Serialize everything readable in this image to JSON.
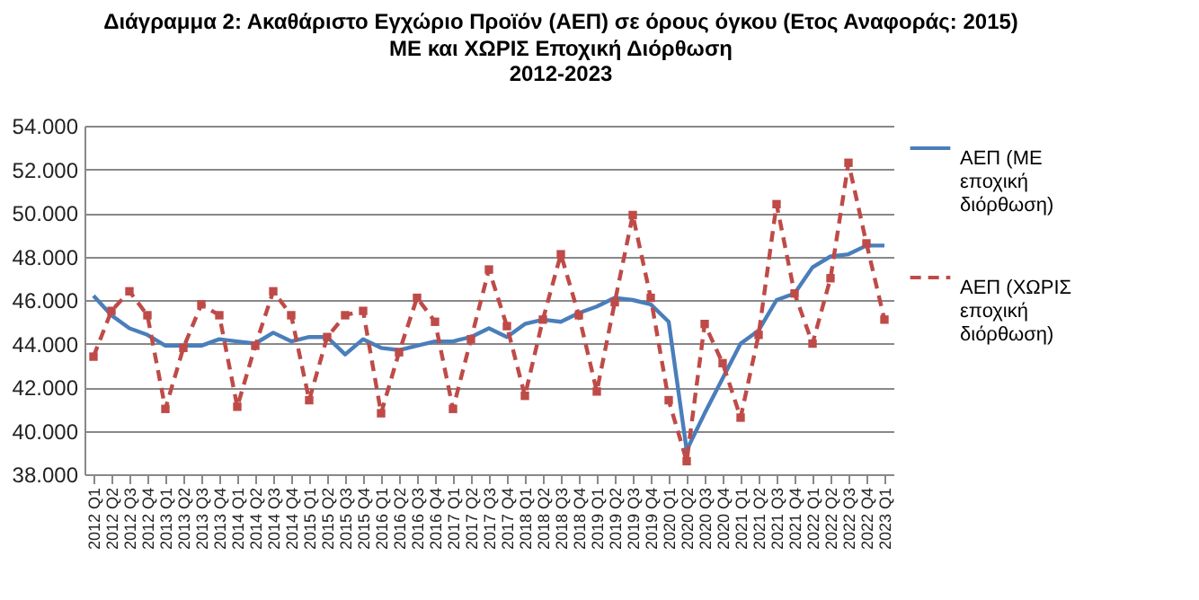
{
  "chart_data": {
    "type": "line",
    "title": "Διάγραμμα 2: Ακαθάριστο Εγχώριο Προϊόν (ΑΕΠ) σε όρους όγκου (Ετος Αναφοράς: 2015)",
    "subtitle": "ΜΕ και ΧΩΡΙΣ Εποχική Διόρθωση\n2012-2023",
    "categories": [
      "2012 Q1",
      "2012 Q2",
      "2012 Q3",
      "2012 Q4",
      "2013 Q1",
      "2013 Q2",
      "2013 Q3",
      "2013 Q4",
      "2014 Q1",
      "2014 Q2",
      "2014 Q3",
      "2014 Q4",
      "2015 Q1",
      "2015 Q2",
      "2015 Q3",
      "2015 Q4",
      "2016 Q1",
      "2016 Q2",
      "2016 Q3",
      "2016 Q4",
      "2017 Q1",
      "2017 Q2",
      "2017 Q3",
      "2017 Q4",
      "2018 Q1",
      "2018 Q2",
      "2018 Q3",
      "2018 Q4",
      "2019 Q1",
      "2019 Q2",
      "2019 Q3",
      "2019 Q4",
      "2020 Q1",
      "2020 Q2",
      "2020 Q3",
      "2020 Q4",
      "2021 Q1",
      "2021 Q2",
      "2021 Q3",
      "2021 Q4",
      "2022 Q1",
      "2022 Q2",
      "2022 Q3",
      "2022 Q4",
      "2023 Q1"
    ],
    "series": [
      {
        "name": "ΑΕΠ (ΜΕ εποχική διόρθωση)",
        "color": "#4a7ebb",
        "line_style": "solid",
        "marker": "none",
        "values": [
          46200,
          45300,
          44700,
          44400,
          43900,
          43900,
          43900,
          44200,
          44100,
          44000,
          44500,
          44100,
          44300,
          44300,
          43500,
          44200,
          43800,
          43700,
          43900,
          44100,
          44100,
          44300,
          44700,
          44300,
          44900,
          45100,
          45000,
          45400,
          45700,
          46100,
          46000,
          45800,
          45000,
          39100,
          40800,
          42400,
          44000,
          44600,
          46000,
          46300,
          47500,
          48000,
          48100,
          48500,
          48500
        ]
      },
      {
        "name": "ΑΕΠ (ΧΩΡΙΣ εποχική διόρθωση)",
        "color": "#be4b48",
        "line_style": "dashed",
        "marker": "square",
        "values": [
          43400,
          45500,
          46400,
          45300,
          41000,
          43800,
          45800,
          45300,
          41100,
          43900,
          46400,
          45300,
          41400,
          44300,
          45300,
          45500,
          40800,
          43600,
          46100,
          45000,
          41000,
          44200,
          47400,
          44800,
          41600,
          45100,
          48100,
          45300,
          41800,
          45900,
          49900,
          46100,
          41400,
          38600,
          44900,
          43100,
          40600,
          44400,
          50400,
          46300,
          44000,
          47000,
          52300,
          48600,
          45100
        ]
      }
    ],
    "ylim": [
      38000,
      54000
    ],
    "yticks": [
      {
        "value": 38000,
        "label": "38.000"
      },
      {
        "value": 40000,
        "label": "40.000"
      },
      {
        "value": 42000,
        "label": "42.000"
      },
      {
        "value": 44000,
        "label": "44.000"
      },
      {
        "value": 46000,
        "label": "46.000"
      },
      {
        "value": 48000,
        "label": "48.000"
      },
      {
        "value": 50000,
        "label": "50.000"
      },
      {
        "value": 52000,
        "label": "52.000"
      },
      {
        "value": 54000,
        "label": "54.000"
      }
    ],
    "grid": "y",
    "legend": "right"
  }
}
